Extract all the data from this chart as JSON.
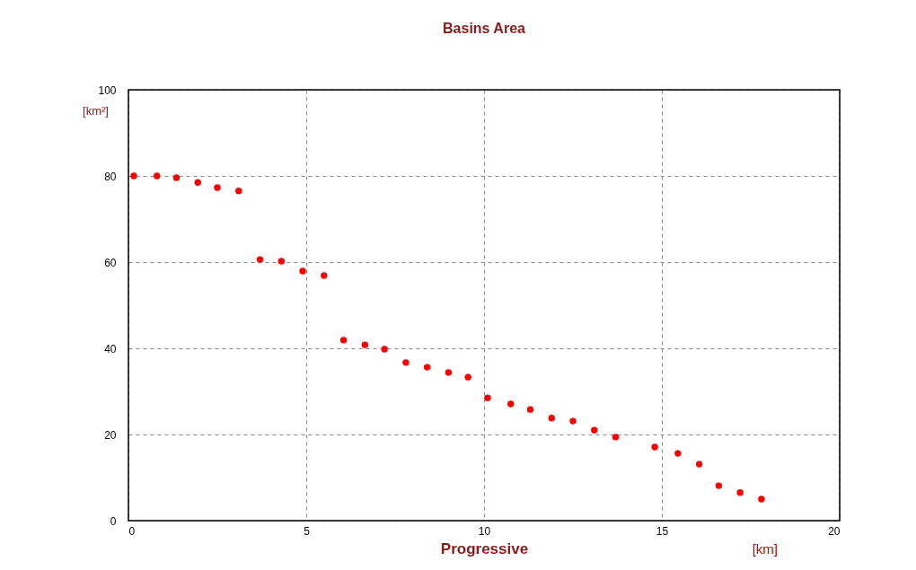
{
  "chart_data": {
    "type": "scatter",
    "title": "Basins Area",
    "xlabel": "Progressive",
    "ylabel": "[km²]",
    "annotations": [
      "[km]"
    ],
    "x": [
      0.15,
      0.8,
      1.35,
      1.95,
      2.5,
      3.1,
      3.7,
      4.3,
      4.9,
      5.5,
      6.05,
      6.65,
      7.2,
      7.8,
      8.4,
      9.0,
      9.55,
      10.1,
      10.75,
      11.3,
      11.9,
      12.5,
      13.1,
      13.7,
      14.8,
      15.45,
      16.05,
      16.6,
      17.2,
      17.8
    ],
    "series": [
      {
        "color": "#ff0000",
        "values": [
          80.0,
          80.0,
          79.6,
          78.5,
          77.3,
          76.5,
          60.6,
          60.2,
          57.9,
          56.9,
          41.9,
          40.8,
          39.8,
          36.7,
          35.6,
          34.4,
          33.3,
          28.5,
          27.1,
          25.8,
          23.8,
          23.1,
          21.0,
          19.4,
          17.1,
          15.6,
          13.1,
          8.1,
          6.5,
          5.0
        ]
      }
    ],
    "xlim": [
      0,
      20
    ],
    "xticks": [
      0,
      5,
      10,
      15,
      20
    ],
    "ylim": [
      0,
      100
    ],
    "yticks": [
      0,
      20,
      40,
      60,
      80,
      100
    ],
    "grid": true,
    "marker": "circle"
  }
}
